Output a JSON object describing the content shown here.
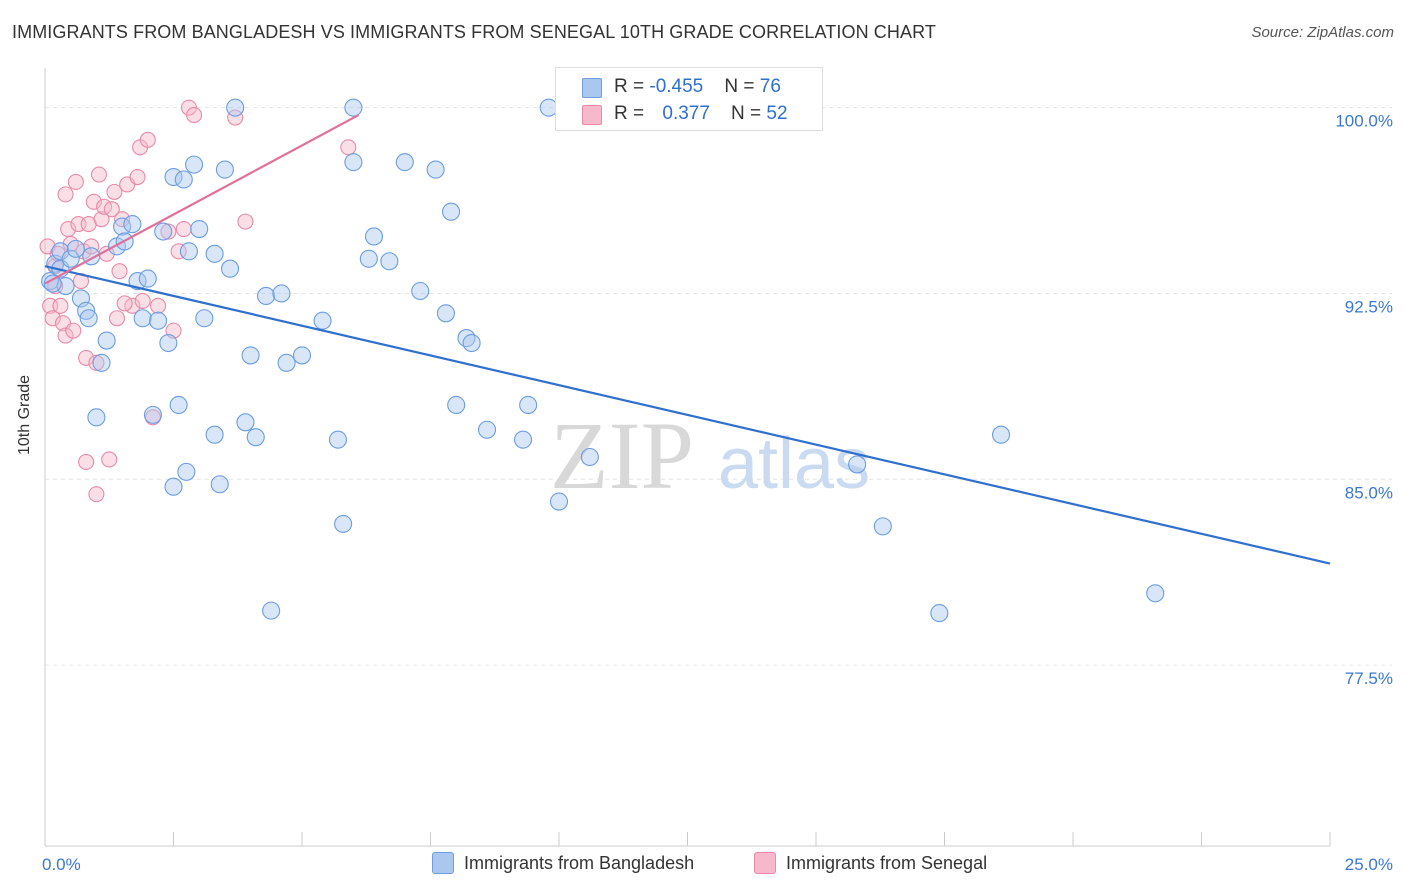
{
  "title": "IMMIGRANTS FROM BANGLADESH VS IMMIGRANTS FROM SENEGAL 10TH GRADE CORRELATION CHART",
  "source": "Source: ZipAtlas.com",
  "watermark": {
    "zip": "ZIP",
    "atlas": "atlas"
  },
  "legend": {
    "bangladesh": {
      "r_label": "R = ",
      "r_value": "-0.455",
      "n_label": "N = ",
      "n_value": "76"
    },
    "senegal": {
      "r_label": "R = ",
      "r_value": "0.377",
      "n_label": "N = ",
      "n_value": "52"
    }
  },
  "colors": {
    "blue_fill": "#aac8ef",
    "blue_stroke": "#6b9de0",
    "blue_line": "#2f6fce",
    "pink_fill": "#f6b8ca",
    "pink_stroke": "#e88aa8",
    "pink_line": "#e0709a",
    "tick_text": "#3a78d0"
  },
  "chart_data": {
    "type": "scatter",
    "title": "IMMIGRANTS FROM BANGLADESH VS IMMIGRANTS FROM SENEGAL 10TH GRADE CORRELATION CHART",
    "xlabel": "",
    "ylabel": "10th Grade",
    "xlim": [
      0,
      25
    ],
    "ylim": [
      70.2,
      101.6
    ],
    "x_tick_labels": [
      {
        "value": 0,
        "label": "0.0%"
      },
      {
        "value": 25,
        "label": "25.0%"
      }
    ],
    "y_tick_labels": [
      {
        "value": 100,
        "label": "100.0%"
      },
      {
        "value": 92.5,
        "label": "92.5%"
      },
      {
        "value": 85,
        "label": "85.0%"
      },
      {
        "value": 77.5,
        "label": "77.5%"
      }
    ],
    "series": [
      {
        "name": "Immigrants from Bangladesh",
        "color": "blue",
        "trend": {
          "x": [
            0.0,
            25.0
          ],
          "y": [
            93.6,
            81.6
          ]
        },
        "points": [
          [
            0.1,
            93.0
          ],
          [
            0.2,
            93.7
          ],
          [
            0.3,
            94.2
          ],
          [
            0.3,
            93.5
          ],
          [
            0.4,
            92.8
          ],
          [
            0.5,
            93.9
          ],
          [
            0.6,
            94.3
          ],
          [
            0.7,
            92.3
          ],
          [
            0.8,
            91.8
          ],
          [
            0.85,
            91.5
          ],
          [
            0.9,
            94.0
          ],
          [
            1.0,
            87.5
          ],
          [
            1.1,
            89.7
          ],
          [
            1.2,
            90.6
          ],
          [
            1.4,
            94.4
          ],
          [
            1.5,
            95.2
          ],
          [
            1.55,
            94.6
          ],
          [
            1.7,
            95.3
          ],
          [
            1.8,
            93.0
          ],
          [
            1.9,
            91.5
          ],
          [
            2.0,
            93.1
          ],
          [
            2.1,
            87.6
          ],
          [
            2.2,
            91.4
          ],
          [
            2.3,
            95.0
          ],
          [
            2.4,
            90.5
          ],
          [
            2.5,
            84.7
          ],
          [
            2.5,
            97.2
          ],
          [
            2.6,
            88.0
          ],
          [
            2.7,
            97.1
          ],
          [
            2.75,
            85.3
          ],
          [
            2.8,
            94.2
          ],
          [
            2.9,
            97.7
          ],
          [
            3.0,
            95.1
          ],
          [
            3.1,
            91.5
          ],
          [
            3.3,
            94.1
          ],
          [
            3.3,
            86.8
          ],
          [
            3.4,
            84.8
          ],
          [
            3.5,
            97.5
          ],
          [
            3.6,
            93.5
          ],
          [
            3.7,
            100.0
          ],
          [
            3.9,
            87.3
          ],
          [
            4.0,
            90.0
          ],
          [
            4.1,
            86.7
          ],
          [
            4.3,
            92.4
          ],
          [
            4.4,
            79.7
          ],
          [
            4.6,
            92.5
          ],
          [
            4.7,
            89.7
          ],
          [
            5.0,
            90.0
          ],
          [
            5.4,
            91.4
          ],
          [
            5.7,
            86.6
          ],
          [
            5.8,
            83.2
          ],
          [
            6.0,
            97.8
          ],
          [
            6.0,
            100.0
          ],
          [
            6.3,
            93.9
          ],
          [
            6.4,
            94.8
          ],
          [
            6.7,
            93.8
          ],
          [
            7.0,
            97.8
          ],
          [
            7.3,
            92.6
          ],
          [
            7.6,
            97.5
          ],
          [
            7.8,
            91.7
          ],
          [
            7.9,
            95.8
          ],
          [
            8.0,
            88.0
          ],
          [
            8.2,
            90.7
          ],
          [
            8.3,
            90.5
          ],
          [
            8.6,
            87.0
          ],
          [
            9.3,
            86.6
          ],
          [
            9.4,
            88.0
          ],
          [
            9.8,
            100.0
          ],
          [
            10.0,
            84.1
          ],
          [
            10.6,
            85.9
          ],
          [
            15.8,
            85.6
          ],
          [
            16.3,
            83.1
          ],
          [
            17.4,
            79.6
          ],
          [
            18.6,
            86.8
          ],
          [
            21.6,
            80.4
          ],
          [
            0.15,
            92.9
          ]
        ]
      },
      {
        "name": "Immigrants from Senegal",
        "color": "pink",
        "trend": {
          "x": [
            0.0,
            6.1
          ],
          "y": [
            92.9,
            99.7
          ]
        },
        "points": [
          [
            0.05,
            94.4
          ],
          [
            0.1,
            92.0
          ],
          [
            0.15,
            91.5
          ],
          [
            0.2,
            93.6
          ],
          [
            0.2,
            92.8
          ],
          [
            0.25,
            94.1
          ],
          [
            0.3,
            92.0
          ],
          [
            0.35,
            91.3
          ],
          [
            0.4,
            90.8
          ],
          [
            0.4,
            96.5
          ],
          [
            0.45,
            95.1
          ],
          [
            0.5,
            94.5
          ],
          [
            0.55,
            91.0
          ],
          [
            0.6,
            97.0
          ],
          [
            0.65,
            95.3
          ],
          [
            0.7,
            93.0
          ],
          [
            0.75,
            94.2
          ],
          [
            0.8,
            89.9
          ],
          [
            0.8,
            85.7
          ],
          [
            0.85,
            95.3
          ],
          [
            0.9,
            94.4
          ],
          [
            0.95,
            96.2
          ],
          [
            1.0,
            89.7
          ],
          [
            1.0,
            84.4
          ],
          [
            1.05,
            97.3
          ],
          [
            1.1,
            95.5
          ],
          [
            1.15,
            96.0
          ],
          [
            1.2,
            94.1
          ],
          [
            1.25,
            85.8
          ],
          [
            1.3,
            95.9
          ],
          [
            1.35,
            96.6
          ],
          [
            1.4,
            91.5
          ],
          [
            1.45,
            93.4
          ],
          [
            1.5,
            95.5
          ],
          [
            1.6,
            96.9
          ],
          [
            1.7,
            92.0
          ],
          [
            1.8,
            97.2
          ],
          [
            1.85,
            98.4
          ],
          [
            1.9,
            92.2
          ],
          [
            2.0,
            98.7
          ],
          [
            2.1,
            87.5
          ],
          [
            2.2,
            92.0
          ],
          [
            2.4,
            95.0
          ],
          [
            2.5,
            91.0
          ],
          [
            2.6,
            94.2
          ],
          [
            2.7,
            95.1
          ],
          [
            2.8,
            100.0
          ],
          [
            2.9,
            99.7
          ],
          [
            3.7,
            99.6
          ],
          [
            3.9,
            95.4
          ],
          [
            5.9,
            98.4
          ],
          [
            1.55,
            92.1
          ]
        ]
      }
    ]
  },
  "bottom_legend": [
    "Immigrants from Bangladesh",
    "Immigrants from Senegal"
  ]
}
